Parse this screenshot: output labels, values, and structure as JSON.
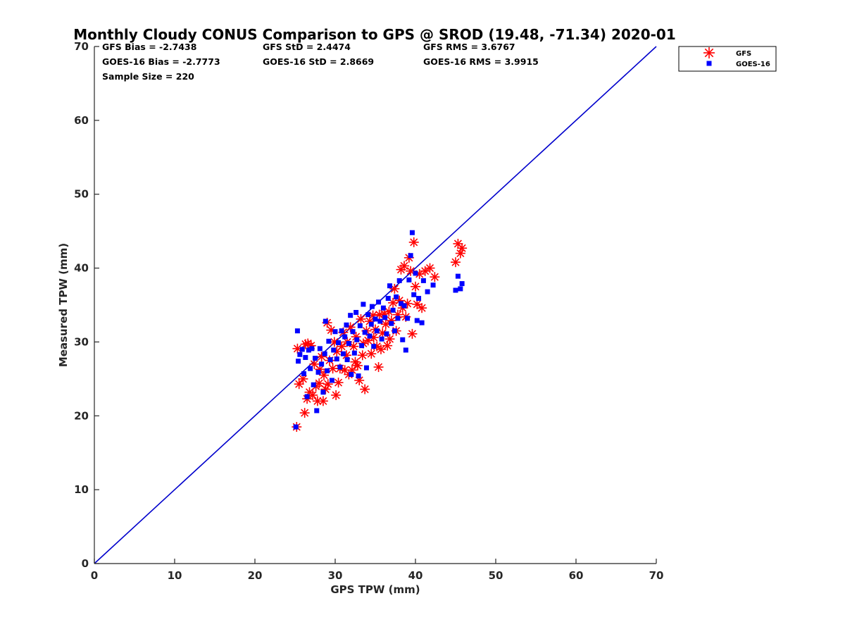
{
  "chart_data": {
    "type": "scatter",
    "title": "Monthly Cloudy CONUS Comparison to GPS @ SROD (19.48, -71.34) 2020-01",
    "xlabel": "GPS TPW (mm)",
    "ylabel": "Measured TPW (mm)",
    "xlim": [
      0,
      70
    ],
    "ylim": [
      0,
      70
    ],
    "xticks": [
      "0",
      "10",
      "20",
      "30",
      "40",
      "50",
      "60",
      "70"
    ],
    "yticks": [
      "0",
      "10",
      "20",
      "30",
      "40",
      "50",
      "60",
      "70"
    ],
    "reference_line": {
      "name": "1:1",
      "from": [
        0,
        0
      ],
      "to": [
        70,
        70
      ],
      "color": "#0000cc"
    },
    "stats": {
      "gfs_bias": "GFS Bias = -2.7438",
      "goes_bias": "GOES-16 Bias = -2.7773",
      "sample_size": "Sample Size = 220",
      "gfs_std": "GFS StD = 2.4474",
      "goes_std": "GOES-16 StD = 2.8669",
      "gfs_rms": "GFS RMS = 3.6767",
      "goes_rms": "GOES-16 RMS = 3.9915"
    },
    "legend": {
      "position": "top-right",
      "entries": [
        "GFS",
        "GOES-16"
      ]
    },
    "series": [
      {
        "name": "GFS",
        "marker": "asterisk",
        "color": "#ff0000",
        "points": [
          [
            25.2,
            18.5
          ],
          [
            25.3,
            29.1
          ],
          [
            25.5,
            24.3
          ],
          [
            26.0,
            25.0
          ],
          [
            26.2,
            20.4
          ],
          [
            26.3,
            29.7
          ],
          [
            26.5,
            22.3
          ],
          [
            26.6,
            29.8
          ],
          [
            26.8,
            23.2
          ],
          [
            27.0,
            29.5
          ],
          [
            27.2,
            22.8
          ],
          [
            27.4,
            27.0
          ],
          [
            27.6,
            24.0
          ],
          [
            27.8,
            22.0
          ],
          [
            28.0,
            24.4
          ],
          [
            28.1,
            26.3
          ],
          [
            28.3,
            28.0
          ],
          [
            28.5,
            22.0
          ],
          [
            28.6,
            25.5
          ],
          [
            28.8,
            23.6
          ],
          [
            29.0,
            32.6
          ],
          [
            29.1,
            24.3
          ],
          [
            29.3,
            27.5
          ],
          [
            29.5,
            31.6
          ],
          [
            29.7,
            26.4
          ],
          [
            29.9,
            30.0
          ],
          [
            30.1,
            22.8
          ],
          [
            30.2,
            28.7
          ],
          [
            30.4,
            24.5
          ],
          [
            30.6,
            26.4
          ],
          [
            30.8,
            29.4
          ],
          [
            31.0,
            31.3
          ],
          [
            31.2,
            26.2
          ],
          [
            31.4,
            28.2
          ],
          [
            31.5,
            30.0
          ],
          [
            31.7,
            25.6
          ],
          [
            31.9,
            32.0
          ],
          [
            32.1,
            26.2
          ],
          [
            32.3,
            29.4
          ],
          [
            32.5,
            27.3
          ],
          [
            32.6,
            30.7
          ],
          [
            32.8,
            26.8
          ],
          [
            33.0,
            24.8
          ],
          [
            33.2,
            33.1
          ],
          [
            33.4,
            28.2
          ],
          [
            33.5,
            29.8
          ],
          [
            33.7,
            23.6
          ],
          [
            33.9,
            31.5
          ],
          [
            34.1,
            30.2
          ],
          [
            34.3,
            32.8
          ],
          [
            34.5,
            28.4
          ],
          [
            34.7,
            33.6
          ],
          [
            34.8,
            30.6
          ],
          [
            35.0,
            31.7
          ],
          [
            35.2,
            29.4
          ],
          [
            35.4,
            26.6
          ],
          [
            35.5,
            33.7
          ],
          [
            35.7,
            29.0
          ],
          [
            35.9,
            31.2
          ],
          [
            36.1,
            33.8
          ],
          [
            36.3,
            32.4
          ],
          [
            36.5,
            29.5
          ],
          [
            36.7,
            34.1
          ],
          [
            36.8,
            30.4
          ],
          [
            37.0,
            32.9
          ],
          [
            37.2,
            35.3
          ],
          [
            37.4,
            37.2
          ],
          [
            37.6,
            31.5
          ],
          [
            37.8,
            33.7
          ],
          [
            38.0,
            35.6
          ],
          [
            38.2,
            39.8
          ],
          [
            38.4,
            34.6
          ],
          [
            38.6,
            40.3
          ],
          [
            38.8,
            33.4
          ],
          [
            39.0,
            35.2
          ],
          [
            39.2,
            41.4
          ],
          [
            39.4,
            39.6
          ],
          [
            39.6,
            31.1
          ],
          [
            39.8,
            43.5
          ],
          [
            40.0,
            37.5
          ],
          [
            40.2,
            35.1
          ],
          [
            40.5,
            39.2
          ],
          [
            40.8,
            34.6
          ],
          [
            41.2,
            39.6
          ],
          [
            41.8,
            40.0
          ],
          [
            42.4,
            38.8
          ],
          [
            45.0,
            40.8
          ],
          [
            45.3,
            43.3
          ],
          [
            45.6,
            42.0
          ],
          [
            45.8,
            42.7
          ]
        ]
      },
      {
        "name": "GOES-16",
        "marker": "square",
        "color": "#0000ff",
        "points": [
          [
            25.1,
            18.5
          ],
          [
            25.3,
            31.5
          ],
          [
            25.4,
            27.4
          ],
          [
            25.6,
            28.3
          ],
          [
            25.9,
            29.0
          ],
          [
            26.1,
            25.7
          ],
          [
            26.3,
            27.9
          ],
          [
            26.5,
            22.6
          ],
          [
            26.7,
            28.9
          ],
          [
            26.9,
            26.4
          ],
          [
            27.1,
            29.1
          ],
          [
            27.3,
            24.2
          ],
          [
            27.5,
            27.8
          ],
          [
            27.7,
            20.7
          ],
          [
            27.9,
            25.9
          ],
          [
            28.1,
            29.1
          ],
          [
            28.3,
            27.0
          ],
          [
            28.5,
            23.2
          ],
          [
            28.7,
            28.4
          ],
          [
            28.8,
            32.8
          ],
          [
            29.0,
            26.1
          ],
          [
            29.2,
            30.1
          ],
          [
            29.4,
            27.6
          ],
          [
            29.6,
            24.8
          ],
          [
            29.8,
            28.9
          ],
          [
            30.0,
            31.4
          ],
          [
            30.2,
            27.7
          ],
          [
            30.4,
            29.9
          ],
          [
            30.6,
            26.6
          ],
          [
            30.8,
            31.5
          ],
          [
            31.0,
            28.4
          ],
          [
            31.2,
            30.7
          ],
          [
            31.4,
            32.3
          ],
          [
            31.5,
            27.6
          ],
          [
            31.7,
            29.8
          ],
          [
            31.9,
            33.6
          ],
          [
            32.0,
            25.6
          ],
          [
            32.2,
            31.4
          ],
          [
            32.4,
            28.5
          ],
          [
            32.6,
            34.0
          ],
          [
            32.7,
            30.3
          ],
          [
            32.9,
            25.4
          ],
          [
            33.1,
            32.2
          ],
          [
            33.3,
            29.5
          ],
          [
            33.5,
            35.1
          ],
          [
            33.7,
            31.3
          ],
          [
            33.9,
            26.5
          ],
          [
            34.1,
            33.7
          ],
          [
            34.3,
            30.8
          ],
          [
            34.5,
            32.4
          ],
          [
            34.6,
            34.8
          ],
          [
            34.8,
            29.4
          ],
          [
            35.0,
            33.1
          ],
          [
            35.2,
            31.5
          ],
          [
            35.4,
            35.4
          ],
          [
            35.6,
            32.8
          ],
          [
            35.8,
            30.4
          ],
          [
            36.0,
            34.6
          ],
          [
            36.2,
            33.3
          ],
          [
            36.4,
            31.1
          ],
          [
            36.6,
            35.9
          ],
          [
            36.8,
            37.6
          ],
          [
            37.0,
            32.5
          ],
          [
            37.2,
            34.3
          ],
          [
            37.4,
            31.5
          ],
          [
            37.6,
            36.1
          ],
          [
            37.8,
            33.2
          ],
          [
            38.0,
            38.3
          ],
          [
            38.2,
            35.2
          ],
          [
            38.4,
            30.3
          ],
          [
            38.6,
            34.9
          ],
          [
            38.8,
            28.9
          ],
          [
            39.0,
            33.2
          ],
          [
            39.2,
            38.4
          ],
          [
            39.4,
            41.7
          ],
          [
            39.6,
            44.8
          ],
          [
            39.8,
            36.4
          ],
          [
            40.0,
            39.3
          ],
          [
            40.2,
            32.9
          ],
          [
            40.4,
            35.9
          ],
          [
            40.8,
            32.6
          ],
          [
            41.0,
            38.3
          ],
          [
            41.5,
            36.8
          ],
          [
            42.2,
            37.7
          ],
          [
            45.0,
            37.0
          ],
          [
            45.3,
            38.9
          ],
          [
            45.6,
            37.2
          ],
          [
            45.8,
            37.9
          ]
        ]
      }
    ]
  }
}
